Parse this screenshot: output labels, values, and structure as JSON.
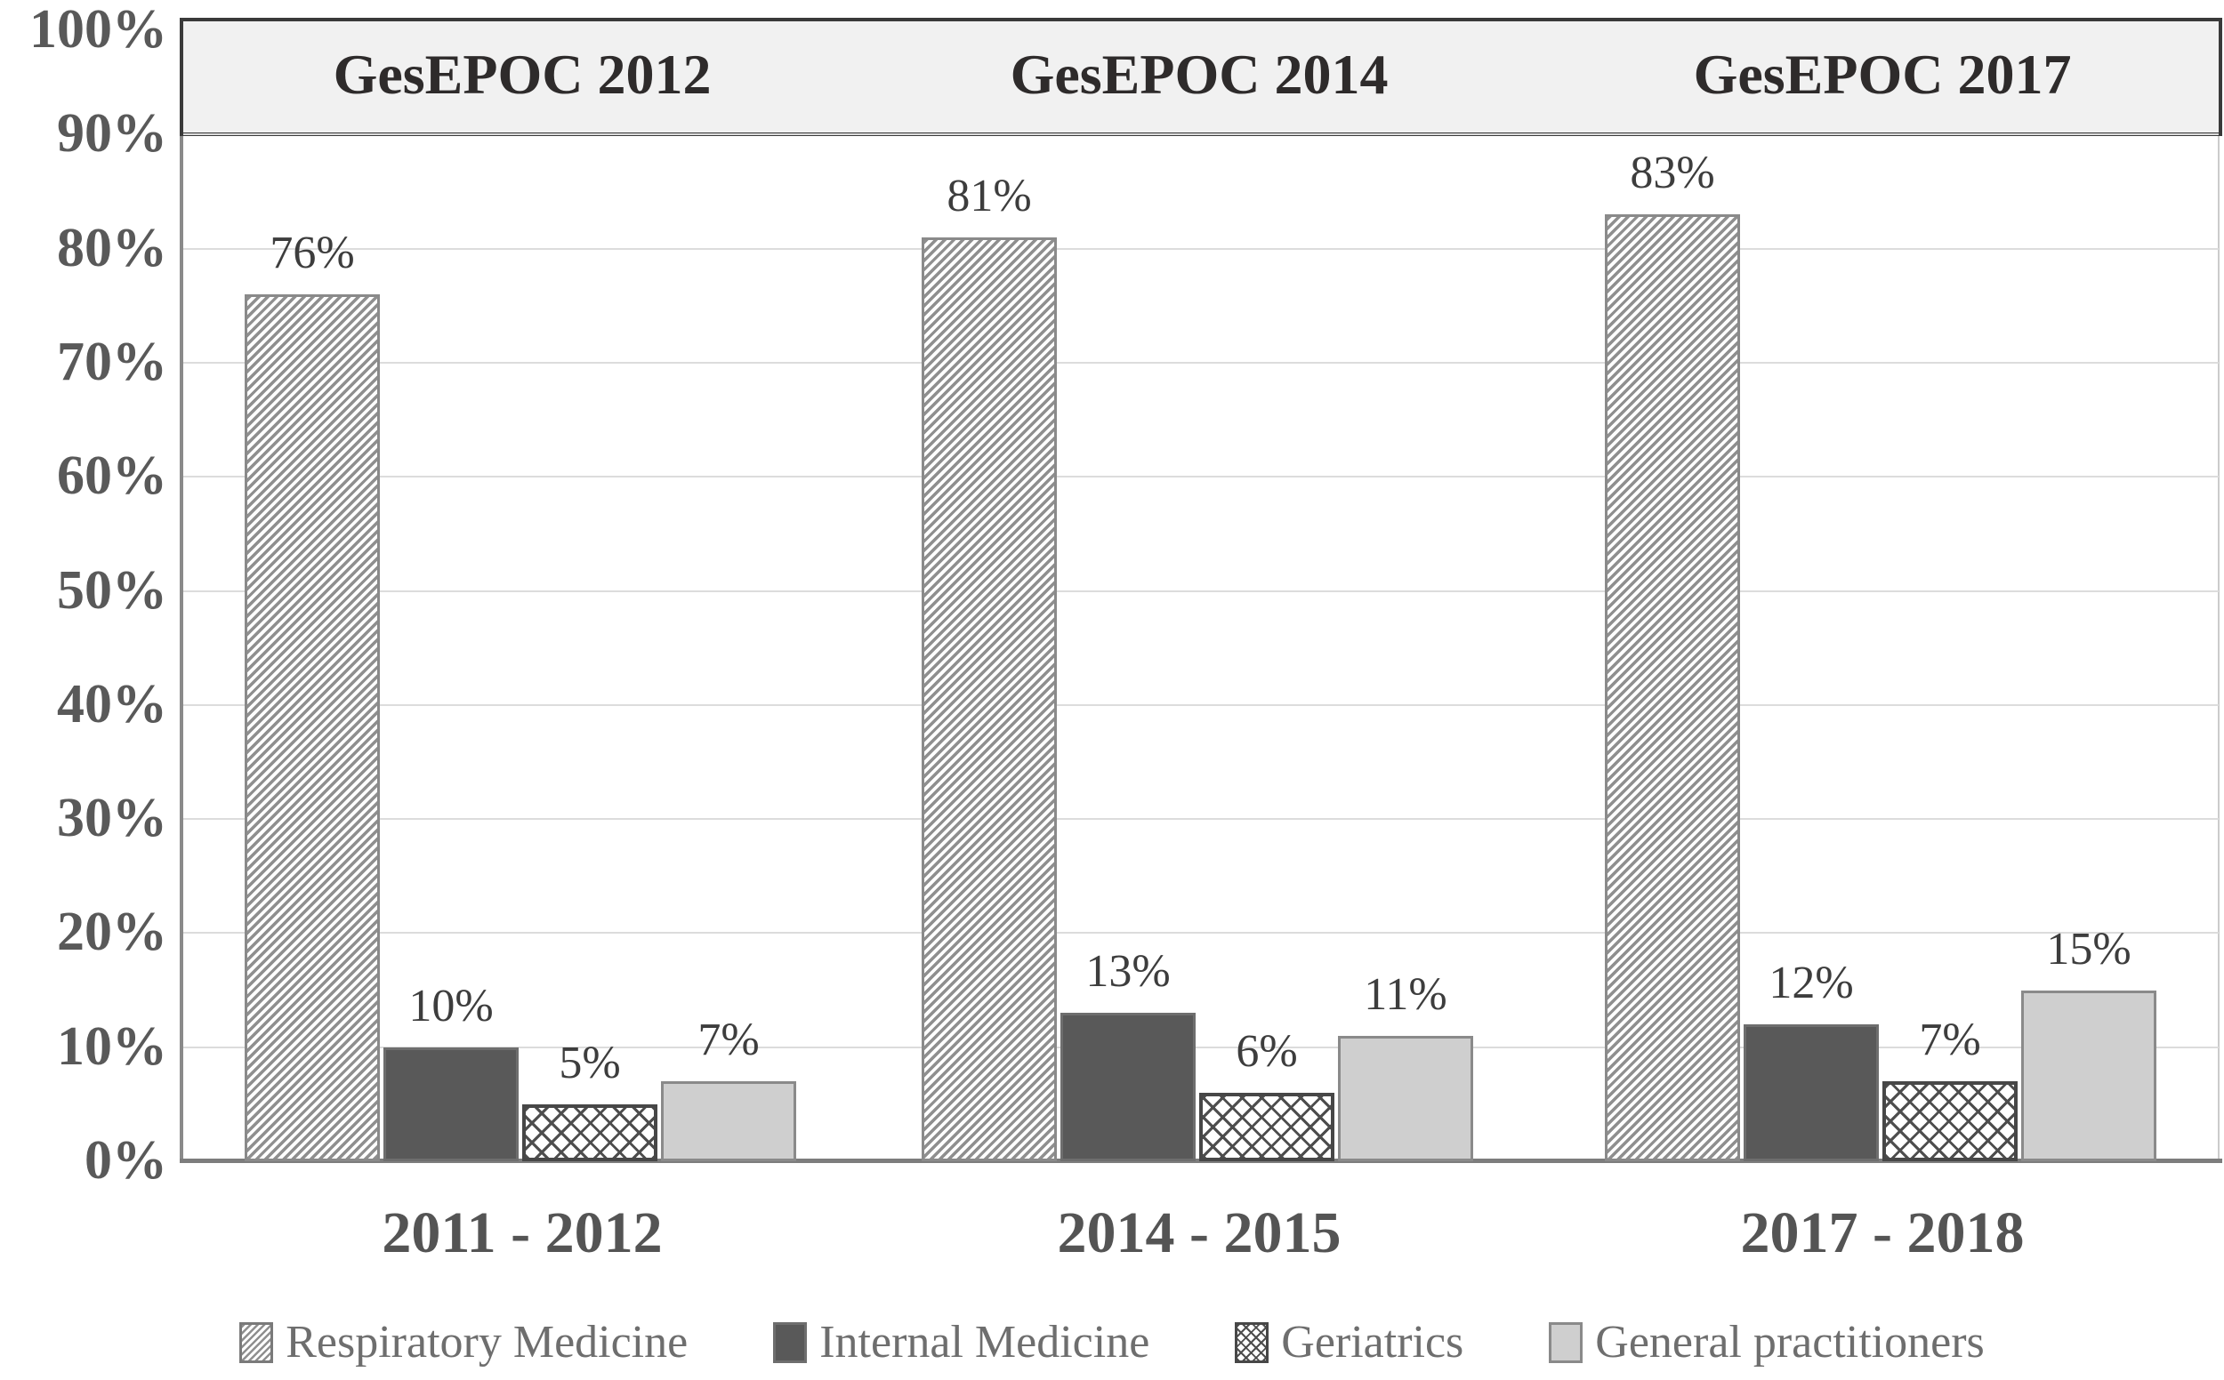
{
  "figure": {
    "header_titles": [
      "GesEPOC 2012",
      "GesEPOC 2014",
      "GesEPOC 2017"
    ]
  },
  "y_axis": {
    "ticks": [
      "0%",
      "10%",
      "20%",
      "30%",
      "40%",
      "50%",
      "60%",
      "70%",
      "80%",
      "90%",
      "100%"
    ]
  },
  "chart_data": {
    "type": "bar",
    "categories": [
      "2011 - 2012",
      "2014 - 2015",
      "2017 - 2018"
    ],
    "series": [
      {
        "name": "Respiratory Medicine",
        "pattern": "hatch",
        "values": [
          76,
          81,
          83
        ]
      },
      {
        "name": "Internal Medicine",
        "pattern": "solid-dark",
        "values": [
          10,
          13,
          12
        ]
      },
      {
        "name": "Geriatrics",
        "pattern": "cross",
        "values": [
          5,
          6,
          7
        ]
      },
      {
        "name": "General practitioners",
        "pattern": "solid-light",
        "values": [
          7,
          11,
          15
        ]
      }
    ],
    "value_suffix": "%",
    "group_headers": [
      "GesEPOC 2012",
      "GesEPOC 2014",
      "GesEPOC 2017"
    ],
    "ylim": [
      0,
      100
    ],
    "y_step": 10,
    "grid": true,
    "legend_position": "bottom"
  },
  "legend": {
    "items": [
      {
        "label": "Respiratory Medicine",
        "pattern": "hatch"
      },
      {
        "label": "Internal Medicine",
        "pattern": "solid-dark"
      },
      {
        "label": "Geriatrics",
        "pattern": "cross"
      },
      {
        "label": "General practitioners",
        "pattern": "solid-light"
      }
    ]
  },
  "colors": {
    "solid_dark_bar": "#595959",
    "solid_light_bar": "#cfcfcf",
    "hatch_stripe": "#8f8f8f",
    "crosshatch_line": "#4d4d4d",
    "band_background": "#f1f1f1",
    "band_border": "#3a3a3a",
    "gridline": "#dcdcdc",
    "axis_line": "#7d7d7d",
    "axis_text": "#595959",
    "value_label_text": "#3d3d3d",
    "legend_text": "#6e6e6e"
  }
}
